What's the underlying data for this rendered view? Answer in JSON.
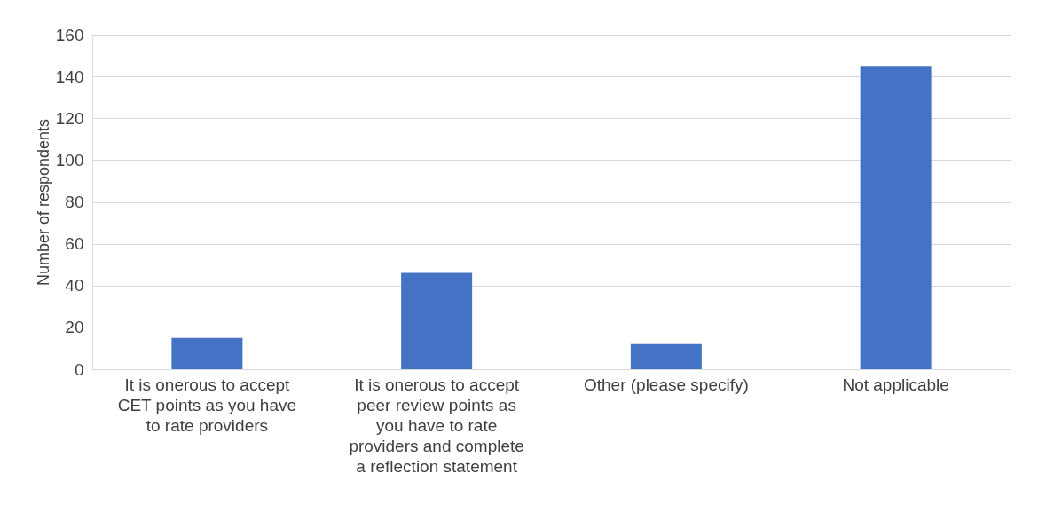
{
  "chart_data": {
    "type": "bar",
    "ylabel": "Number of respondents",
    "categories": [
      "It is onerous to accept CET points as you have to rate providers",
      "It is onerous to accept peer review points as you have to rate providers and complete a reflection statement",
      "Other (please specify)",
      "Not applicable"
    ],
    "values": [
      15,
      46,
      12,
      145
    ],
    "color": "#4472c4",
    "ylim": [
      0,
      160
    ],
    "yticks": [
      0,
      20,
      40,
      60,
      80,
      100,
      120,
      140,
      160
    ],
    "grid": "y"
  }
}
